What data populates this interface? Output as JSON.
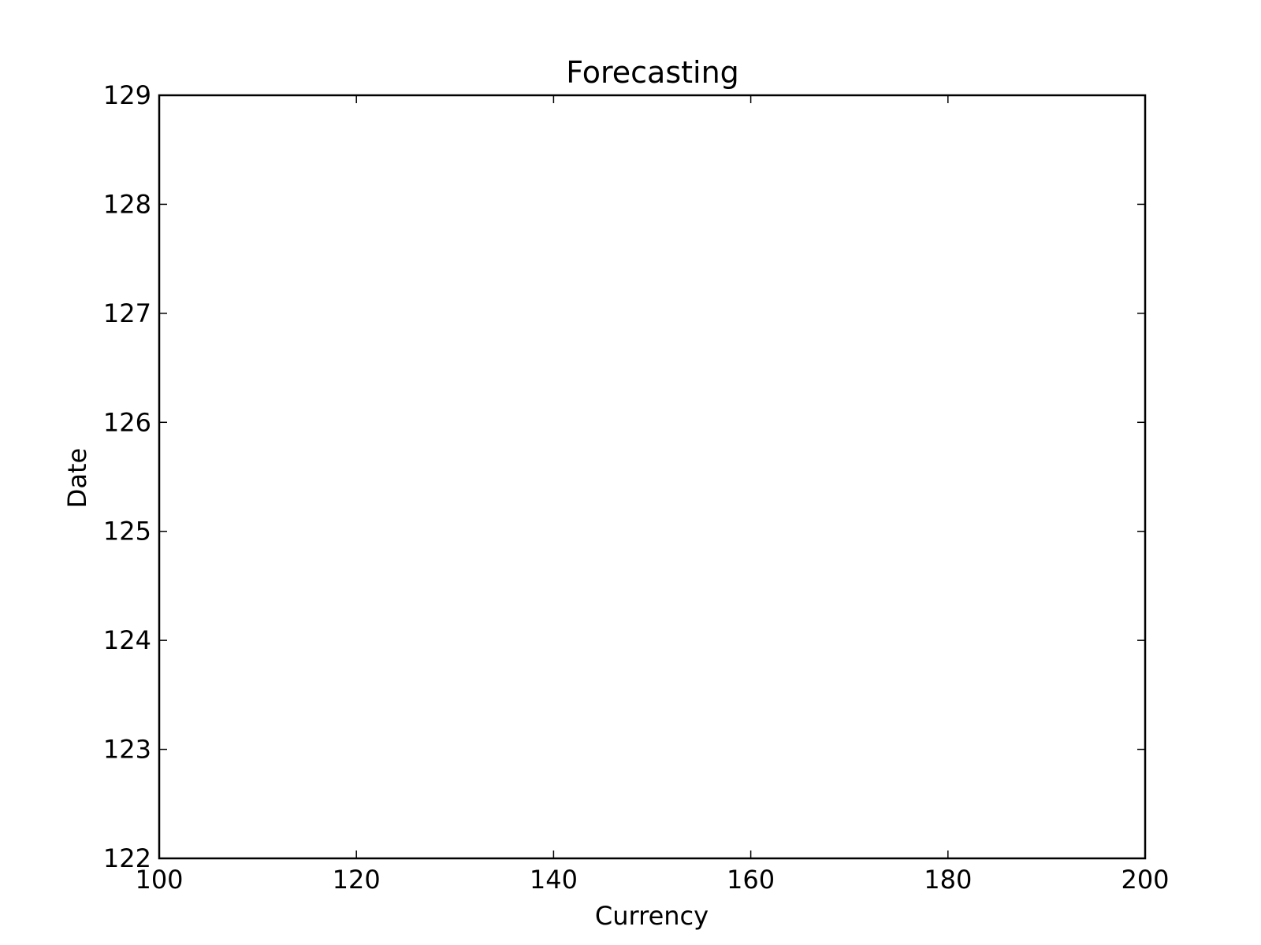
{
  "chart_data": {
    "type": "line",
    "title": "Forecasting",
    "xlabel": "Currency",
    "ylabel": "Date",
    "xlim": [
      100,
      200
    ],
    "ylim": [
      122,
      129
    ],
    "xticks": [
      100,
      120,
      140,
      160,
      180,
      200
    ],
    "yticks": [
      122,
      123,
      124,
      125,
      126,
      127,
      128,
      129
    ],
    "series": [],
    "grid": false,
    "colors": {
      "frame": "#000000",
      "background": "#ffffff"
    }
  }
}
